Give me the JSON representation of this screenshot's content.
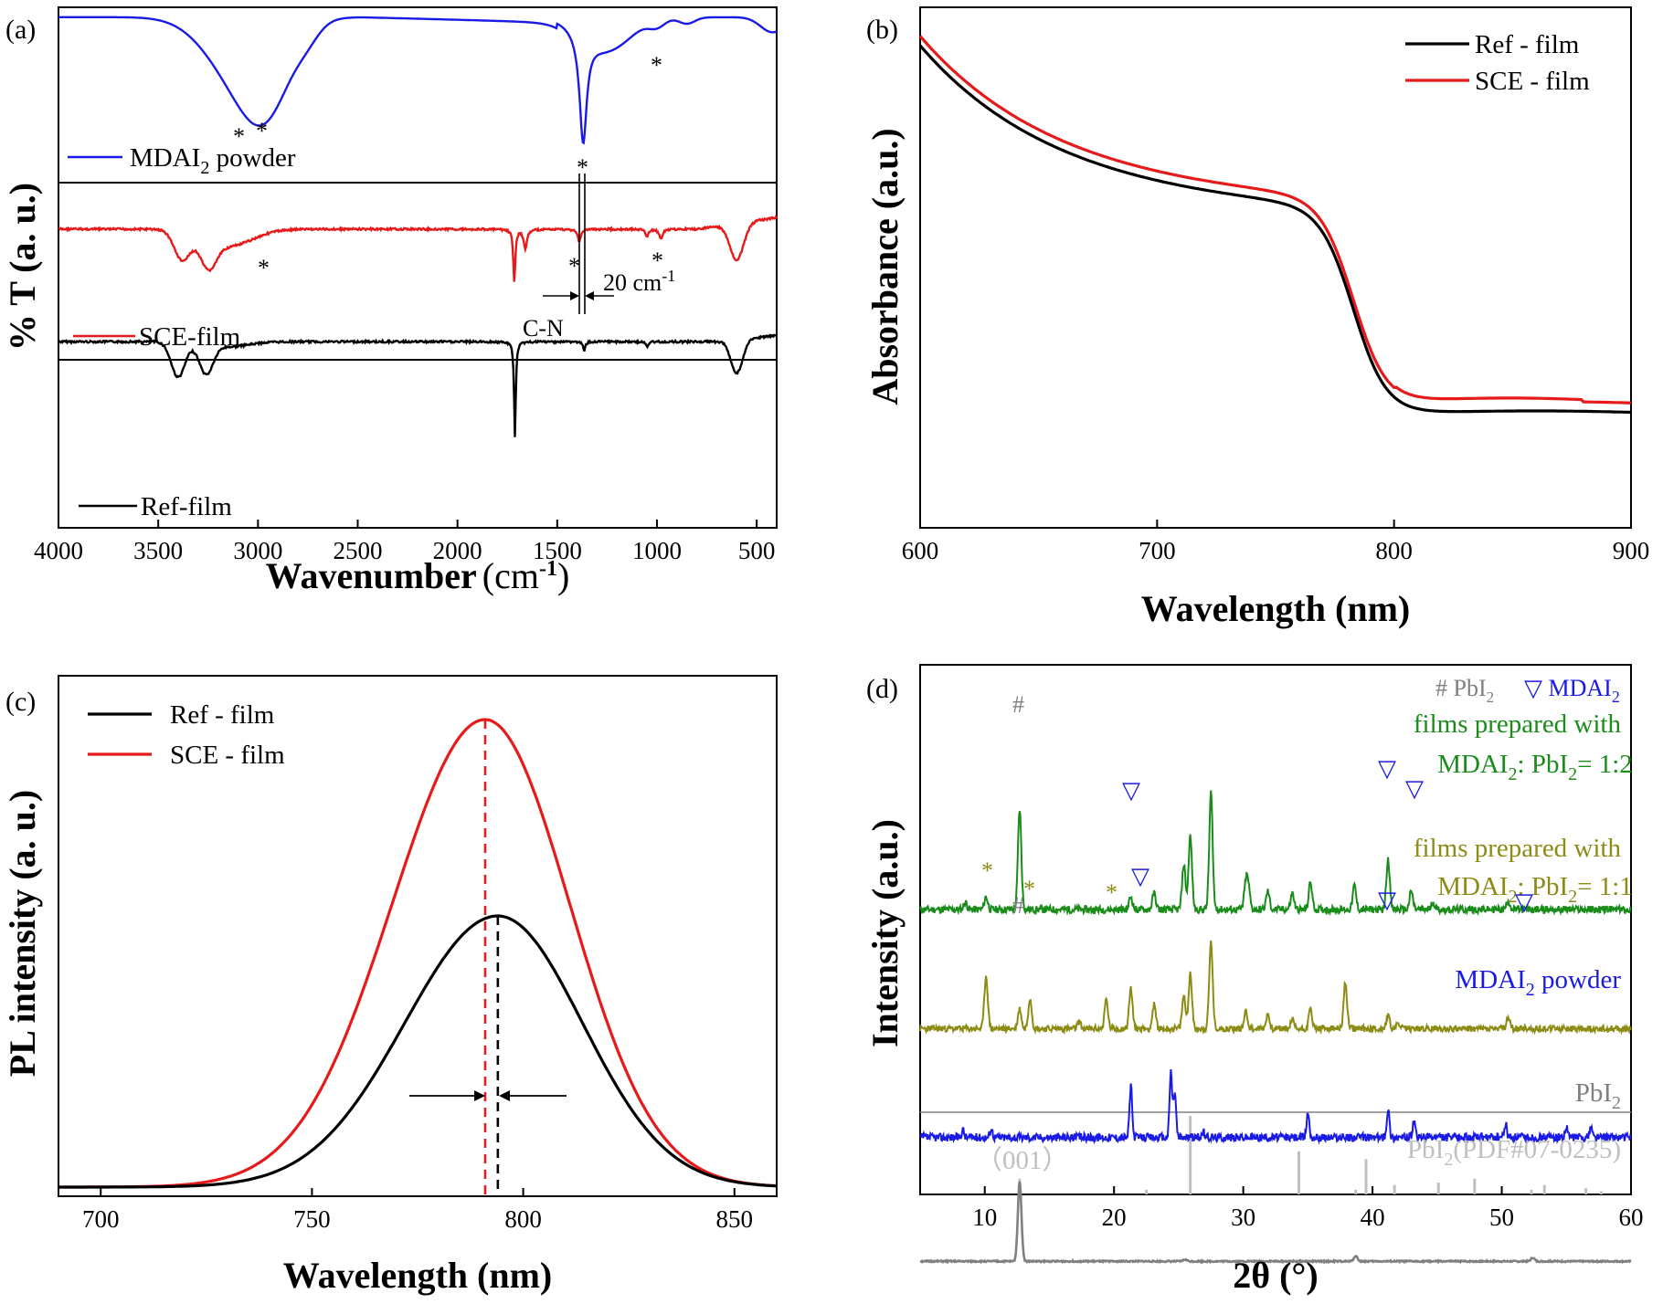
{
  "chart_data": [
    {
      "panel": "(a)",
      "type": "line",
      "xlabel": "Wavenumber",
      "xlabel_unit": "(cm",
      "xlabel_unit_sup": "-1",
      "xlabel_unit_close": ")",
      "ylabel": "% T (a. u.)",
      "xlim": [
        4000,
        400
      ],
      "xticks": [
        "4000",
        "3500",
        "3000",
        "2500",
        "2000",
        "1500",
        "1000",
        "500"
      ],
      "series": [
        {
          "name": "MDAI",
          "name_sub": "2",
          "name_rest": " powder",
          "color": "#1a1ae6"
        },
        {
          "name": "SCE-film",
          "color": "#e61a1a"
        },
        {
          "name": "Ref-film",
          "color": "#000000"
        }
      ],
      "annotations": {
        "star": "*",
        "cn_label": "C-N",
        "shift_label": "20 cm",
        "shift_sup": "-1"
      }
    },
    {
      "panel": "(b)",
      "type": "line",
      "xlabel": "Wavelength (nm)",
      "ylabel": "Absorbance (a.u.)",
      "xlim": [
        600,
        900
      ],
      "xticks": [
        "600",
        "700",
        "800",
        "900"
      ],
      "series": [
        {
          "name": "Ref - film",
          "color": "#000000"
        },
        {
          "name": "SCE - film",
          "color": "#e61a1a"
        }
      ]
    },
    {
      "panel": "(c)",
      "type": "line",
      "xlabel": "Wavelength (nm)",
      "ylabel": "PL intensity (a. u.)",
      "xlim": [
        690,
        860
      ],
      "xticks": [
        "700",
        "750",
        "800",
        "850"
      ],
      "series": [
        {
          "name": "Ref - film",
          "color": "#000000",
          "peak_nm": 794,
          "peak_rel": 0.58
        },
        {
          "name": "SCE - film",
          "color": "#e61a1a",
          "peak_nm": 791,
          "peak_rel": 1.0
        }
      ]
    },
    {
      "panel": "(d)",
      "type": "line",
      "xlabel": "2θ (°)",
      "ylabel": "Intensity (a.u.)",
      "xlim": [
        5,
        60
      ],
      "xticks": [
        "10",
        "20",
        "30",
        "40",
        "50",
        "60"
      ],
      "legend": {
        "pbi2_marker": "# PbI",
        "pbi2_sub": "2",
        "mdai_marker": "▽ MDAI",
        "mdai_sub": "2"
      },
      "series": [
        {
          "name": "films prepared with",
          "name2_a": "MDAI",
          "name2_sub": "2",
          "name2_b": ": PbI",
          "name2_sub2": "2",
          "name2_c": "= 1:2",
          "color": "#1a8c1a"
        },
        {
          "name": "films prepared with",
          "name2_a": "MDAI",
          "name2_sub": "2",
          "name2_b": ": PbI",
          "name2_sub2": "2",
          "name2_c": "= 1:1",
          "color": "#8c8c14"
        },
        {
          "name": "MDAI",
          "name_sub": "2",
          "name_rest": " powder",
          "color": "#1a1ae6"
        },
        {
          "name": "PbI",
          "name_sub": "2",
          "color": "#808080"
        },
        {
          "name": "PbI",
          "name_sub": "2",
          "name_rest": "(PDF#07-0235)",
          "color": "#bfbfbf"
        }
      ],
      "ref_label": "（001）",
      "ref_peaks_2theta": [
        12.7,
        22.5,
        25.9,
        34.3,
        38.7,
        39.5,
        41.7,
        45.1,
        47.9,
        52.3,
        53.3,
        56.5,
        57.7
      ],
      "ref_peaks_rel": [
        0.2,
        0.06,
        1.0,
        0.55,
        0.06,
        0.45,
        0.12,
        0.15,
        0.2,
        0.06,
        0.12,
        0.08,
        0.04
      ]
    }
  ]
}
